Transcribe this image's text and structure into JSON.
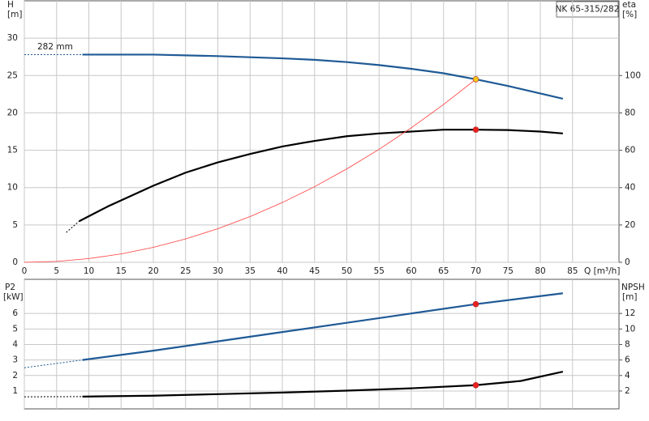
{
  "chart_data": [
    {
      "type": "line",
      "title": "NK 65-315/282",
      "y_label": "H",
      "y_unit": "[m]",
      "y2_label": "eta",
      "y2_unit": "[%]",
      "x_label": "Q [m³/h]",
      "annotation": "282 mm",
      "xlim": [
        0,
        92.2
      ],
      "xticks": [
        0,
        5,
        10,
        15,
        20,
        25,
        30,
        35,
        40,
        45,
        50,
        55,
        60,
        65,
        70,
        75,
        80,
        85
      ],
      "ylim": [
        0,
        35
      ],
      "yticks": [
        0,
        5,
        10,
        15,
        20,
        25,
        30
      ],
      "y2lim": [
        0,
        140
      ],
      "y2ticks": [
        0,
        20,
        40,
        60,
        80,
        100
      ],
      "grid": true,
      "series": [
        {
          "color": "#1f5a96",
          "style": "dashed",
          "x": [
            0,
            9
          ],
          "values": [
            27.8,
            27.8
          ]
        },
        {
          "color": "#1f5a96",
          "x": [
            9,
            20,
            30,
            40,
            45,
            50,
            55,
            60,
            65,
            70,
            75,
            80,
            83.5
          ],
          "values": [
            27.8,
            27.8,
            27.6,
            27.3,
            27.1,
            26.8,
            26.4,
            25.9,
            25.3,
            24.5,
            23.6,
            22.6,
            21.9
          ]
        },
        {
          "color": "#000000",
          "style": "dashed",
          "axis": "y2",
          "x": [
            6.5,
            8.5
          ],
          "values": [
            16,
            22
          ]
        },
        {
          "color": "#000000",
          "axis": "y2",
          "x": [
            8.5,
            13,
            20,
            25,
            30,
            35,
            40,
            45,
            50,
            55,
            60,
            65,
            70,
            75,
            80,
            83.5
          ],
          "values": [
            22,
            30,
            41,
            48,
            53.5,
            58,
            62,
            65,
            67.5,
            69,
            70,
            71,
            71,
            70.8,
            70,
            69
          ]
        },
        {
          "color": "#ff3b3b",
          "style": "thin",
          "x": [
            0,
            5,
            10,
            15,
            20,
            25,
            30,
            35,
            40,
            45,
            50,
            55,
            60,
            65,
            70
          ],
          "values": [
            0,
            0.125,
            0.5,
            1.125,
            2,
            3.125,
            4.5,
            6.125,
            8,
            10.125,
            12.5,
            15.125,
            18,
            21.125,
            24.5
          ]
        }
      ],
      "markers": [
        {
          "x": 70,
          "y": 24.5,
          "color": "#f5c518"
        },
        {
          "x": 70,
          "y": 71,
          "axis": "y2",
          "color": "#e8211e"
        }
      ]
    },
    {
      "type": "line",
      "y_label": "P2",
      "y_unit": "[kW]",
      "y2_label": "NPSH",
      "y2_unit": "[m]",
      "xlim": [
        0,
        92.2
      ],
      "ylim": [
        -0.15,
        8.2
      ],
      "yticks": [
        1,
        2,
        3,
        4,
        5,
        6
      ],
      "y2lim": [
        -0.3,
        16.4
      ],
      "y2ticks": [
        2,
        4,
        6,
        8,
        10,
        12
      ],
      "grid": true,
      "series": [
        {
          "color": "#1f5a96",
          "style": "dashed",
          "x": [
            0,
            9
          ],
          "values": [
            2.5,
            3.0
          ]
        },
        {
          "color": "#1f5a96",
          "x": [
            9,
            20,
            30,
            40,
            50,
            60,
            70,
            83.5
          ],
          "values": [
            3.0,
            3.6,
            4.2,
            4.8,
            5.4,
            6.0,
            6.6,
            7.3
          ]
        },
        {
          "color": "#000000",
          "style": "dashed",
          "axis": "y2",
          "x": [
            0,
            9
          ],
          "values": [
            1.25,
            1.28
          ]
        },
        {
          "color": "#000000",
          "axis": "y2",
          "x": [
            9,
            20,
            30,
            40,
            50,
            60,
            70,
            77,
            83.5
          ],
          "values": [
            1.28,
            1.4,
            1.6,
            1.8,
            2.05,
            2.35,
            2.75,
            3.3,
            4.5
          ]
        }
      ],
      "markers": [
        {
          "x": 70,
          "y": 6.6,
          "color": "#e8211e"
        },
        {
          "x": 70,
          "y": 2.75,
          "axis": "y2",
          "color": "#e8211e"
        }
      ]
    }
  ]
}
